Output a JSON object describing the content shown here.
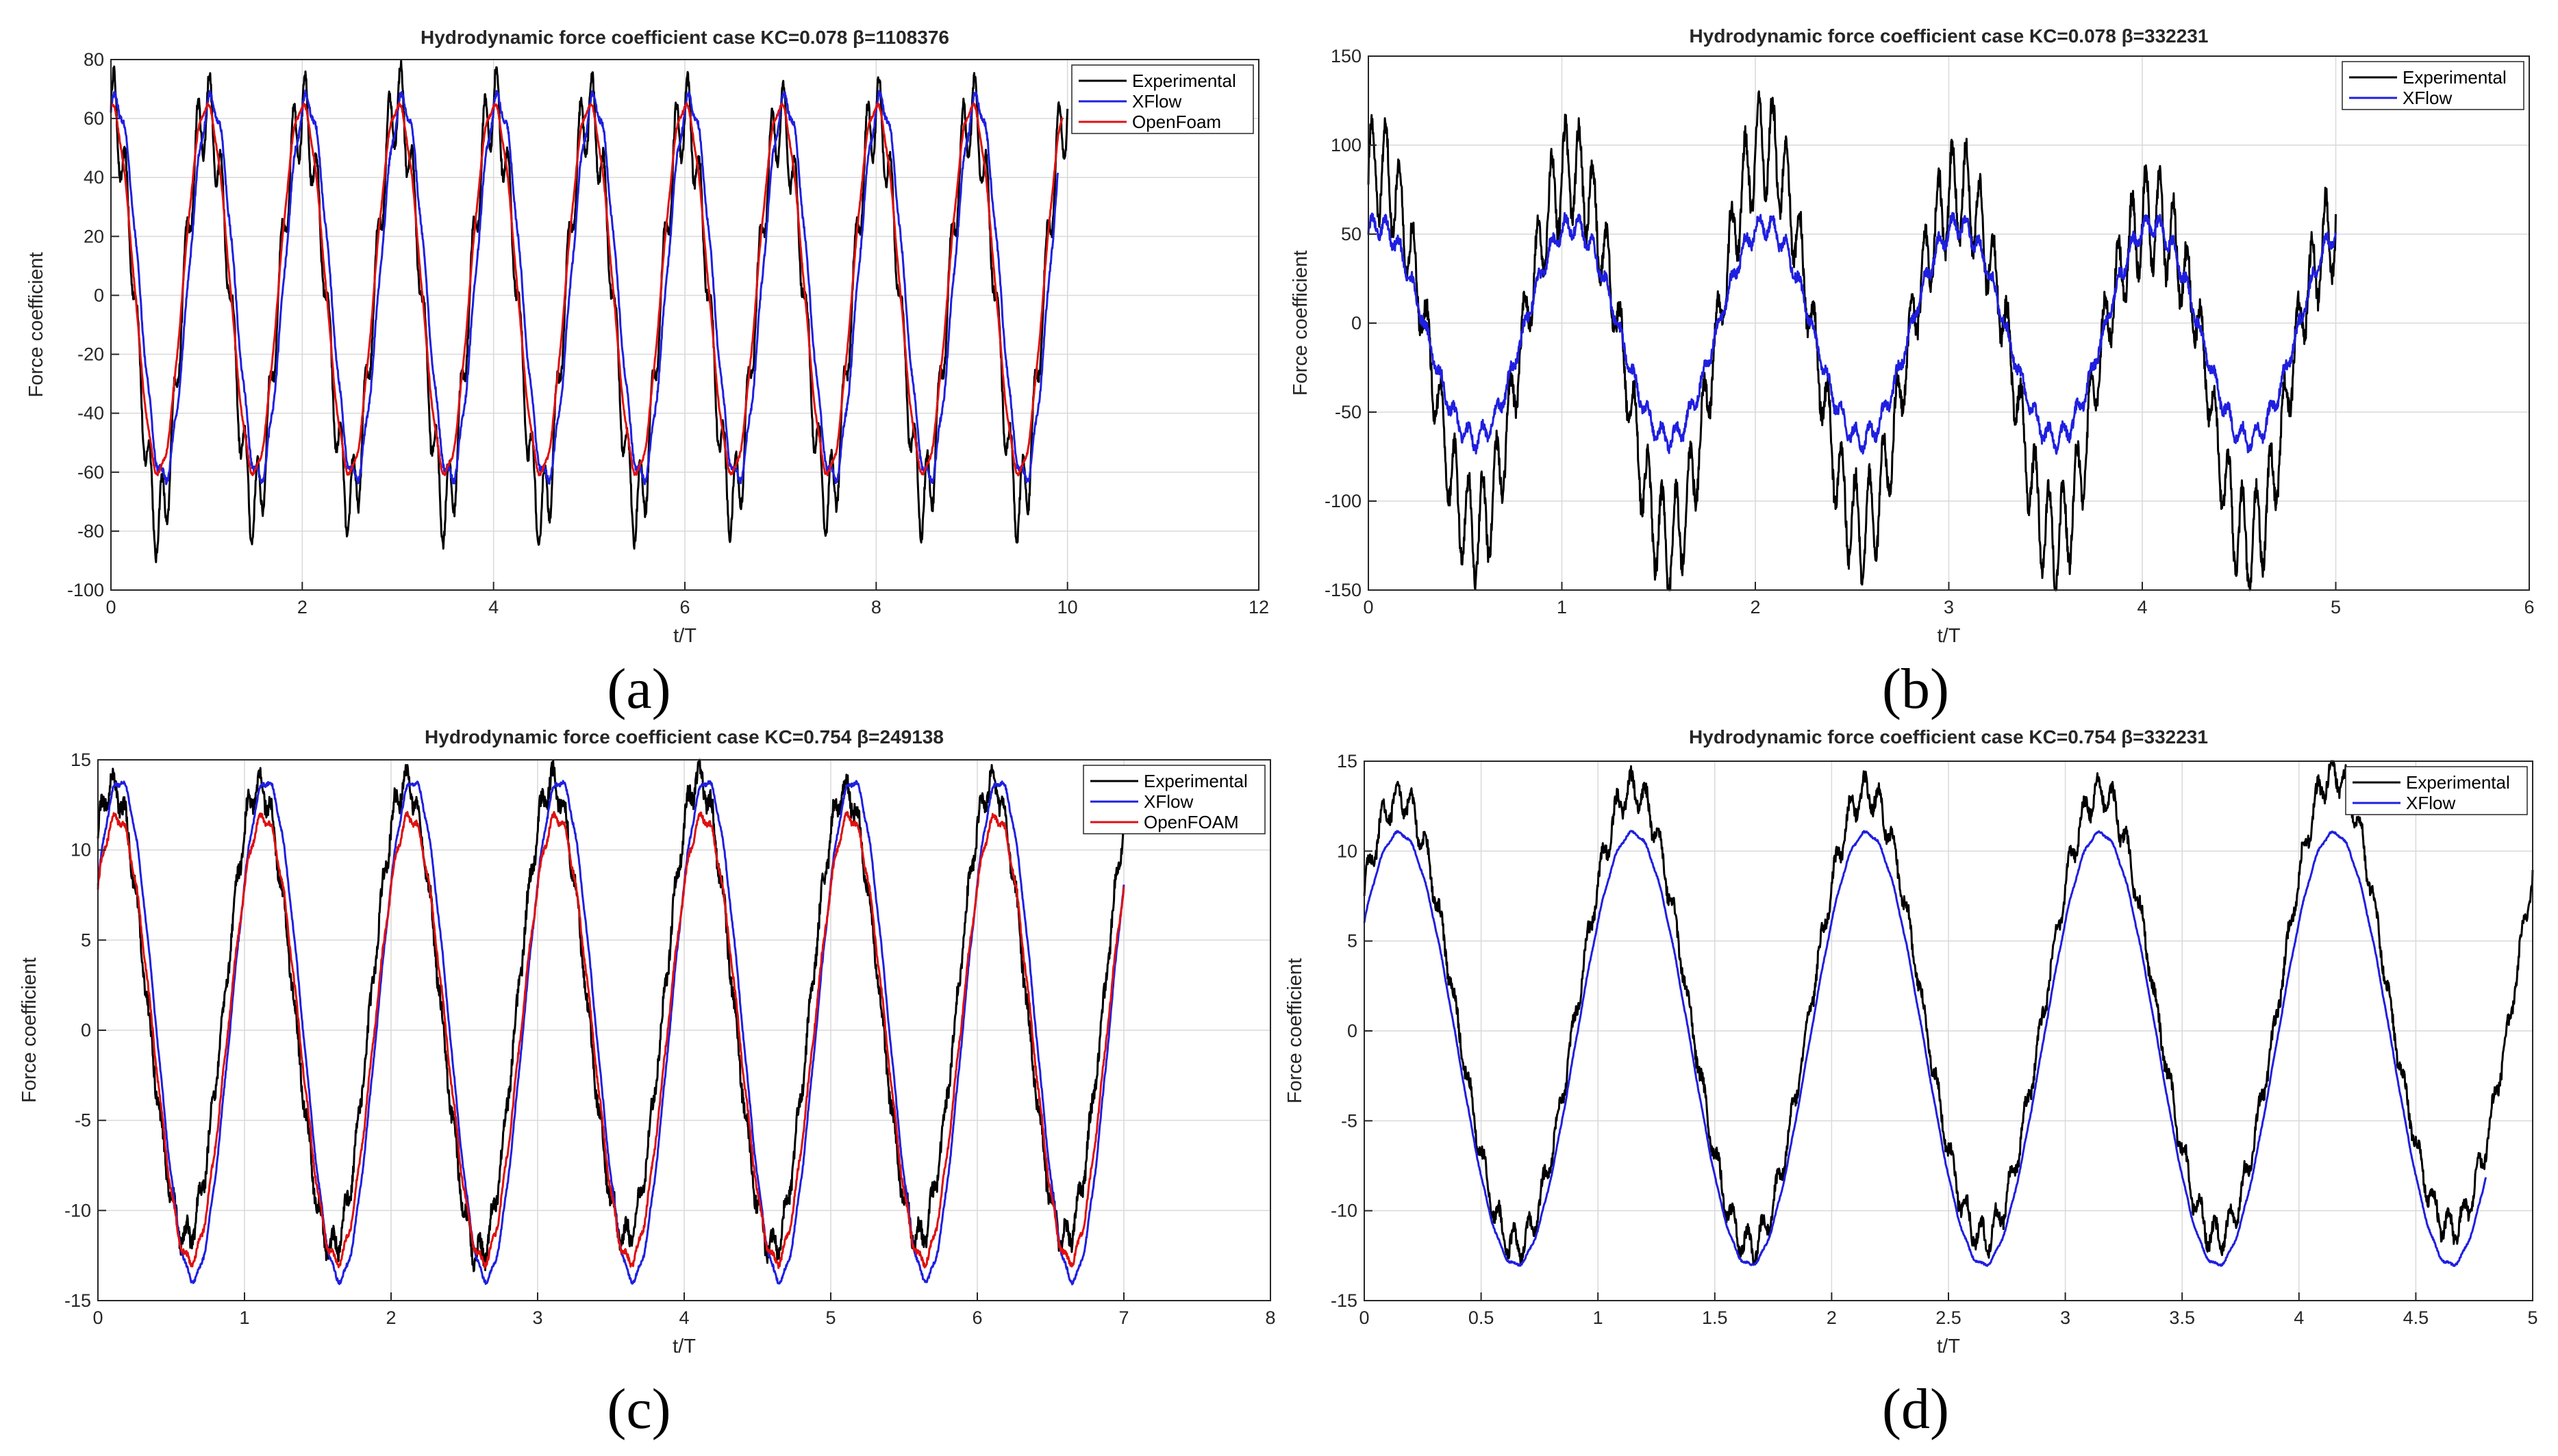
{
  "figure": {
    "panels": [
      {
        "id": "a",
        "caption": "(a)"
      },
      {
        "id": "b",
        "caption": "(b)"
      },
      {
        "id": "c",
        "caption": "(c)"
      },
      {
        "id": "d",
        "caption": "(d)"
      }
    ]
  },
  "colors": {
    "experimental": "#000000",
    "xflow": "#1f1fe0",
    "openfoam": "#e01010",
    "grid": "#d9d9d9",
    "axis": "#262626"
  },
  "chart_data": [
    {
      "type": "line",
      "title": "Hydrodynamic  force  coefficient  case  KC=0.078  β=1108376",
      "xlabel": "t/T",
      "ylabel": "Force coefficient",
      "xlim": [
        0,
        12
      ],
      "ylim": [
        -100,
        80
      ],
      "xticks": [
        0,
        2,
        4,
        6,
        8,
        10,
        12
      ],
      "yticks": [
        -100,
        -80,
        -60,
        -40,
        -20,
        0,
        20,
        40,
        60,
        80
      ],
      "xtick_labels": [
        "0",
        "2",
        "4",
        "6",
        "8",
        "10",
        "12"
      ],
      "ytick_labels": [
        "-100",
        "-80",
        "-60",
        "-40",
        "-20",
        "0",
        "20",
        "40",
        "60",
        "80"
      ],
      "grid": true,
      "legend_position": "top-right",
      "series": [
        {
          "name": "Experimental",
          "color_key": "experimental",
          "x_end": 10.0,
          "period": 1.0,
          "peak_time": 0.0,
          "amplitude": 65,
          "offset": 0,
          "ripple": 14,
          "ripple_freq": 8,
          "noise": 2,
          "peaks": [
            72,
            71,
            70,
            74,
            73,
            71,
            70,
            68,
            70
          ],
          "troughs": [
            -85,
            -80,
            -78,
            -80,
            -82,
            -80,
            -78,
            -78,
            -78,
            -79
          ]
        },
        {
          "name": "XFlow",
          "color_key": "xflow",
          "x_end": 9.9,
          "period": 1.0,
          "peak_time": 0.05,
          "amplitude": 64,
          "offset": 2,
          "ripple": 3,
          "ripple_freq": 8,
          "noise": 1
        },
        {
          "name": "OpenFoam",
          "color_key": "openfoam",
          "x_end": 9.95,
          "period": 1.0,
          "peak_time": 0.0,
          "amplitude": 62,
          "offset": 2,
          "ripple": 1.5,
          "ripple_freq": 8,
          "noise": 0.5
        }
      ]
    },
    {
      "type": "line",
      "title": "Hydrodynamic  force  coefficient  case  KC=0.078  β=332231",
      "xlabel": "t/T",
      "ylabel": "Force coefficient",
      "xlim": [
        0,
        6
      ],
      "ylim": [
        -150,
        150
      ],
      "xticks": [
        0,
        1,
        2,
        3,
        4,
        5,
        6
      ],
      "yticks": [
        -150,
        -100,
        -50,
        0,
        50,
        100,
        150
      ],
      "xtick_labels": [
        "0",
        "1",
        "2",
        "3",
        "4",
        "5",
        "6"
      ],
      "ytick_labels": [
        "-150",
        "-100",
        "-50",
        "0",
        "50",
        "100",
        "150"
      ],
      "grid": true,
      "legend_position": "top-right",
      "series": [
        {
          "name": "Experimental",
          "color_key": "experimental",
          "x_end": 5.0,
          "period": 1.0,
          "peak_time": 0.05,
          "amplitude": 60,
          "offset": -5,
          "ripple": 28,
          "ripple_freq": 14,
          "noise": 6,
          "peaks": [
            104,
            103,
            118,
            91,
            76
          ],
          "troughs": [
            -133,
            -140,
            -133,
            -138,
            -140
          ]
        },
        {
          "name": "XFlow",
          "color_key": "xflow",
          "x_end": 5.0,
          "period": 1.0,
          "peak_time": 0.05,
          "amplitude": 60,
          "offset": -5,
          "ripple": 6,
          "ripple_freq": 14,
          "noise": 3
        }
      ]
    },
    {
      "type": "line",
      "title": "Hydrodynamic  force  coefficient  case  KC=0.754  β=249138",
      "xlabel": "t/T",
      "ylabel": "Force coefficient",
      "xlim": [
        0,
        8
      ],
      "ylim": [
        -15,
        15
      ],
      "xticks": [
        0,
        1,
        2,
        3,
        4,
        5,
        6,
        7,
        8
      ],
      "yticks": [
        -15,
        -10,
        -5,
        0,
        5,
        10,
        15
      ],
      "xtick_labels": [
        "0",
        "1",
        "2",
        "3",
        "4",
        "5",
        "6",
        "7",
        "8"
      ],
      "ytick_labels": [
        "-15",
        "-10",
        "-5",
        "0",
        "5",
        "10",
        "15"
      ],
      "grid": true,
      "legend_position": "top-right",
      "series": [
        {
          "name": "Experimental",
          "color_key": "experimental",
          "x_end": 7.0,
          "period": 1.0,
          "peak_time": 0.1,
          "amplitude": 12.5,
          "offset": 0.5,
          "ripple": 0.8,
          "ripple_freq": 12,
          "noise": 0.5,
          "peaks": [
            14,
            14,
            14.2,
            14.2,
            14.4,
            13.8,
            14.2
          ],
          "troughs": [
            -12,
            -12.5,
            -13,
            -12,
            -12.5,
            -12,
            -12
          ]
        },
        {
          "name": "XFlow",
          "color_key": "xflow",
          "x_end": 7.0,
          "period": 1.0,
          "peak_time": 0.15,
          "amplitude": 13.8,
          "offset": 0,
          "ripple": 0.2,
          "ripple_freq": 12,
          "noise": 0.1
        },
        {
          "name": "OpenFOAM",
          "color_key": "openfoam",
          "x_end": 7.0,
          "period": 1.0,
          "peak_time": 0.13,
          "amplitude": 12.3,
          "offset": -0.5,
          "ripple": 0.3,
          "ripple_freq": 12,
          "noise": 0.15
        }
      ]
    },
    {
      "type": "line",
      "title": "Hydrodynamic  force  coefficient  case  KC=0.754  β=332231",
      "xlabel": "t/T",
      "ylabel": "Force coefficient",
      "xlim": [
        0,
        5
      ],
      "ylim": [
        -15,
        15
      ],
      "xticks": [
        0,
        0.5,
        1,
        1.5,
        2,
        2.5,
        3,
        3.5,
        4,
        4.5,
        5
      ],
      "yticks": [
        -15,
        -10,
        -5,
        0,
        5,
        10,
        15
      ],
      "xtick_labels": [
        "0",
        "0.5",
        "1",
        "1.5",
        "2",
        "2.5",
        "3",
        "3.5",
        "4",
        "4.5",
        "5"
      ],
      "ytick_labels": [
        "-15",
        "-10",
        "-5",
        "0",
        "5",
        "10",
        "15"
      ],
      "grid": true,
      "legend_position": "top-right",
      "series": [
        {
          "name": "Experimental",
          "color_key": "experimental",
          "x_end": 5.0,
          "period": 1.0,
          "peak_time": 0.15,
          "amplitude": 12.8,
          "offset": 0.5,
          "ripple": 0.9,
          "ripple_freq": 16,
          "noise": 0.4,
          "peaks": [
            13.5,
            14,
            13.8,
            13.8,
            14.8
          ],
          "troughs": [
            -12.5,
            -12.5,
            -12,
            -12,
            -11.5
          ]
        },
        {
          "name": "XFlow",
          "color_key": "xflow",
          "x_end": 4.8,
          "period": 1.0,
          "peak_time": 0.15,
          "amplitude": 12,
          "offset": -1,
          "ripple": 0.1,
          "ripple_freq": 16,
          "noise": 0.05
        }
      ]
    }
  ]
}
